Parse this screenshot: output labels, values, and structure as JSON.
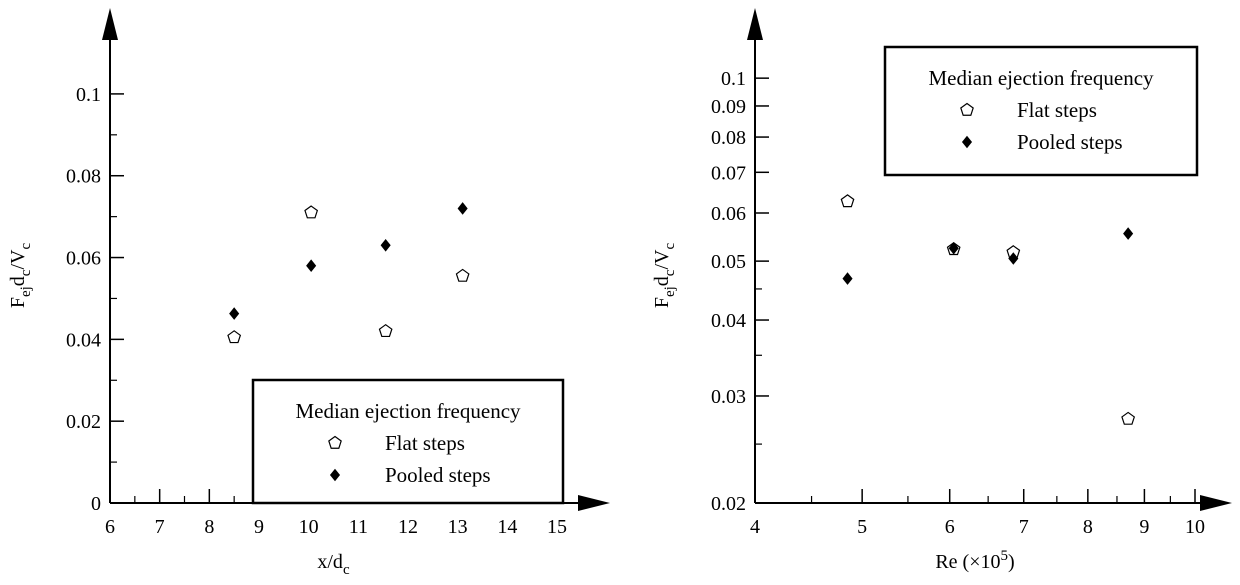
{
  "chart_data": [
    {
      "type": "scatter",
      "xlabel": "x/d",
      "xlabel_sub": "c",
      "ylabel_parts": [
        "F",
        "ej",
        "d",
        "c",
        "/V",
        "c"
      ],
      "xlim": [
        6,
        15
      ],
      "ylim": [
        0,
        0.11
      ],
      "x_ticks": [
        6,
        7,
        8,
        9,
        10,
        11,
        12,
        13,
        14,
        15
      ],
      "x_tick_labels": [
        "6",
        "7",
        "8",
        "9",
        "10",
        "11",
        "12",
        "13",
        "14",
        "15"
      ],
      "y_ticks": [
        0,
        0.02,
        0.04,
        0.06,
        0.08,
        0.1
      ],
      "y_tick_labels": [
        "0",
        "0.02",
        "0.04",
        "0.06",
        "0.08",
        "0.1"
      ],
      "legend_title": "Median ejection frequency",
      "legend_position": "bottom-right",
      "series": [
        {
          "name": "Flat steps",
          "marker": "open-pentagon",
          "x": [
            8.5,
            10.05,
            11.55,
            13.1
          ],
          "y": [
            0.0405,
            0.071,
            0.042,
            0.0555
          ]
        },
        {
          "name": "Pooled steps",
          "marker": "filled-diamond",
          "x": [
            8.5,
            10.05,
            11.55,
            13.1
          ],
          "y": [
            0.0463,
            0.058,
            0.063,
            0.072
          ]
        }
      ]
    },
    {
      "type": "scatter",
      "xlabel": "Re (×10",
      "xlabel_sup": "5",
      "xlabel_close": ")",
      "ylabel_parts": [
        "F",
        "ej",
        "d",
        "c",
        "/V",
        "c"
      ],
      "x_scale": "log",
      "y_scale": "log",
      "xlim": [
        4,
        10
      ],
      "ylim": [
        0.02,
        0.11
      ],
      "x_ticks": [
        4,
        5,
        6,
        7,
        8,
        9,
        10
      ],
      "x_tick_labels": [
        "4",
        "5",
        "6",
        "7",
        "8",
        "9",
        "10"
      ],
      "y_ticks": [
        0.02,
        0.03,
        0.04,
        0.05,
        0.06,
        0.07,
        0.08,
        0.09,
        0.1
      ],
      "y_tick_labels": [
        "0.02",
        "0.03",
        "0.04",
        "0.05",
        "0.06",
        "0.07",
        "0.08",
        "0.09",
        "0.1"
      ],
      "legend_title": "Median ejection frequency",
      "legend_position": "top-right",
      "series": [
        {
          "name": "Flat steps",
          "marker": "open-pentagon",
          "x": [
            4.85,
            6.05,
            6.85,
            8.7
          ],
          "y": [
            0.0627,
            0.0523,
            0.0517,
            0.0275
          ]
        },
        {
          "name": "Pooled steps",
          "marker": "filled-diamond",
          "x": [
            4.85,
            6.05,
            6.85,
            8.7
          ],
          "y": [
            0.0468,
            0.0525,
            0.0505,
            0.0555
          ]
        }
      ]
    }
  ]
}
